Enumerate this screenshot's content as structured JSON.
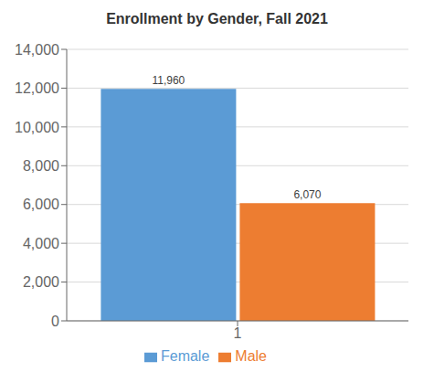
{
  "chart_data": {
    "type": "bar",
    "title": "Enrollment by Gender, Fall 2021",
    "categories": [
      "1"
    ],
    "series": [
      {
        "name": "Female",
        "color": "#5B9BD5",
        "values": [
          11960
        ],
        "value_labels": [
          "11,960"
        ]
      },
      {
        "name": "Male",
        "color": "#ED7D31",
        "values": [
          6070
        ],
        "value_labels": [
          "6,070"
        ]
      }
    ],
    "ylim": [
      0,
      14000
    ],
    "yticks": [
      0,
      {
        "value": 2000,
        "label": "2,000"
      },
      {
        "value": 4000,
        "label": "4,000"
      },
      {
        "value": 6000,
        "label": "6,000"
      },
      {
        "value": 8000,
        "label": "8,000"
      },
      {
        "value": 10000,
        "label": "10,000"
      },
      {
        "value": 12000,
        "label": "12,000"
      },
      {
        "value": 14000,
        "label": "14,000"
      }
    ],
    "grid": true,
    "legend": "bottom",
    "data_labels": true
  }
}
